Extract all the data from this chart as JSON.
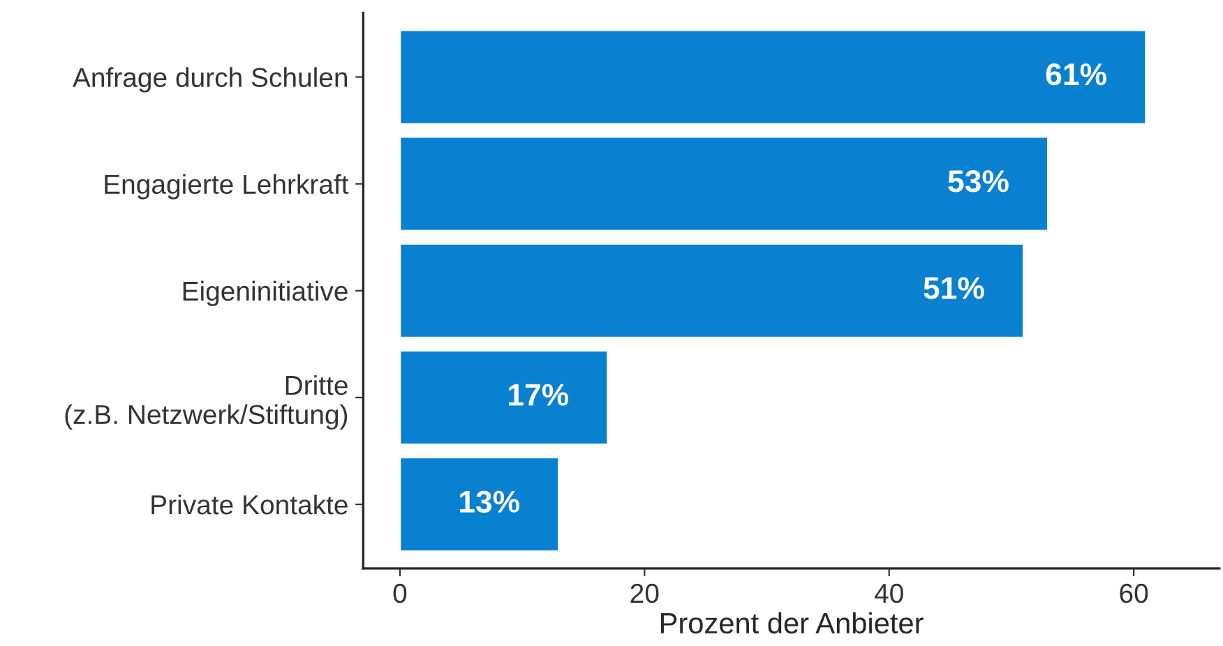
{
  "chart_data": {
    "type": "bar",
    "orientation": "horizontal",
    "categories": [
      "Anfrage durch Schulen",
      "Engagierte Lehrkraft",
      "Eigeninitiative",
      "Dritte\n(z.B. Netzwerk/Stiftung)",
      "Private Kontakte"
    ],
    "values": [
      61,
      53,
      51,
      17,
      13
    ],
    "value_labels": [
      "61%",
      "53%",
      "51%",
      "17%",
      "13%"
    ],
    "color": "#0a80d0",
    "xlabel": "Prozent der Anbieter",
    "xlim": [
      -3,
      67
    ],
    "xticks": [
      0,
      20,
      40,
      60
    ],
    "grid": false,
    "legend": false
  }
}
